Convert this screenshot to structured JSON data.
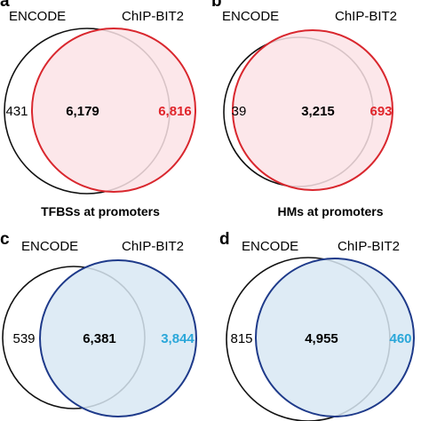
{
  "colors": {
    "red_stroke": "#d9272e",
    "red_fill": "#fbe3e6",
    "red_text": "#e0252b",
    "blue_stroke": "#1e3a8a",
    "blue_fill": "#d8e8f3",
    "blue_text": "#2aa7d9",
    "black": "#111111"
  },
  "panels": [
    {
      "letter": "a",
      "left_set": "ENCODE",
      "right_set": "ChIP-BIT2",
      "only_left": "431",
      "overlap": "6,179",
      "only_right": "6,816",
      "caption": "TFBSs at promoters",
      "theme": "red"
    },
    {
      "letter": "b",
      "left_set": "ENCODE",
      "right_set": "ChIP-BIT2",
      "only_left": "39",
      "overlap": "3,215",
      "only_right": "693",
      "caption": "HMs at promoters",
      "theme": "red"
    },
    {
      "letter": "c",
      "left_set": "ENCODE",
      "right_set": "ChIP-BIT2",
      "only_left": "539",
      "overlap": "6,381",
      "only_right": "3,844",
      "caption": "",
      "theme": "blue"
    },
    {
      "letter": "d",
      "left_set": "ENCODE",
      "right_set": "ChIP-BIT2",
      "only_left": "815",
      "overlap": "4,955",
      "only_right": "460",
      "caption": "",
      "theme": "blue"
    }
  ]
}
